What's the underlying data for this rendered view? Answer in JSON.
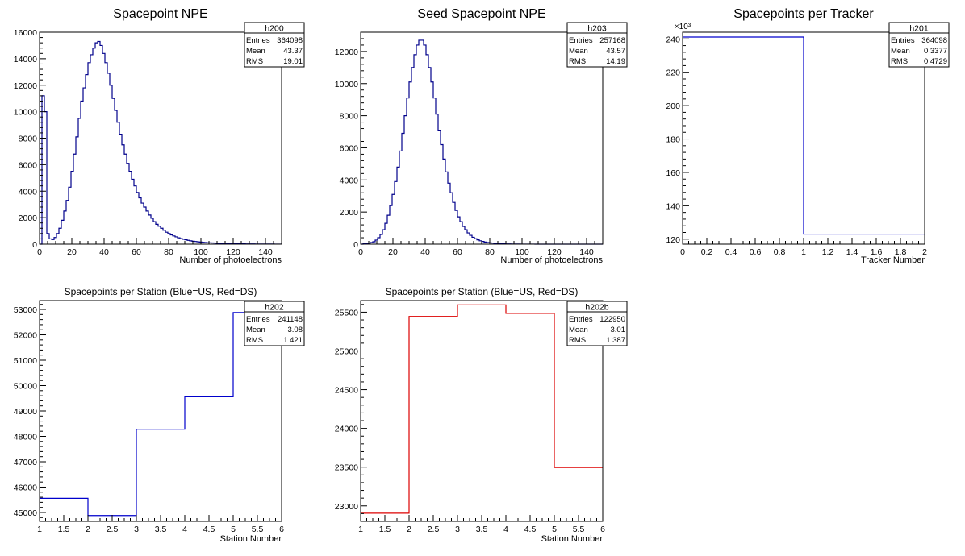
{
  "chart_data": [
    {
      "type": "histogram",
      "title": "Spacepoint NPE",
      "xlabel": "Number of photoelectrons",
      "ylabel": "",
      "xlim": [
        0,
        150
      ],
      "ylim": [
        0,
        16000
      ],
      "x_ticks": [
        0,
        20,
        40,
        60,
        80,
        100,
        120,
        140
      ],
      "y_ticks": [
        0,
        2000,
        4000,
        6000,
        8000,
        10000,
        12000,
        14000,
        16000
      ],
      "y_exponent": "",
      "line_color": "#00008b",
      "stats": {
        "name": "h200",
        "Entries": "364098",
        "Mean": "43.37",
        "RMS": "19.01"
      },
      "bin_edges_start": 0,
      "bin_width": 1.5,
      "values": [
        0,
        11200,
        10000,
        800,
        400,
        350,
        500,
        800,
        1200,
        1800,
        2500,
        3300,
        4300,
        5500,
        6800,
        8100,
        9500,
        10800,
        11800,
        12800,
        13700,
        14300,
        14800,
        15200,
        15300,
        15000,
        14400,
        13700,
        12900,
        12000,
        11000,
        10100,
        9200,
        8300,
        7500,
        6800,
        6100,
        5500,
        4900,
        4400,
        3900,
        3500,
        3100,
        2800,
        2500,
        2200,
        1950,
        1700,
        1500,
        1350,
        1200,
        1050,
        900,
        800,
        700,
        620,
        550,
        480,
        420,
        370,
        330,
        290,
        250,
        220,
        200,
        180,
        160,
        140,
        120,
        110,
        100,
        90,
        80,
        70,
        65,
        60,
        55,
        50,
        45,
        40,
        35,
        30,
        30,
        25,
        25,
        20,
        20,
        15,
        15,
        12,
        12,
        10,
        10,
        8,
        8,
        6,
        6,
        5,
        5,
        5
      ]
    },
    {
      "type": "histogram",
      "title": "Seed Spacepoint NPE",
      "xlabel": "Number of photoelectrons",
      "ylabel": "",
      "xlim": [
        0,
        150
      ],
      "ylim": [
        0,
        13200
      ],
      "x_ticks": [
        0,
        20,
        40,
        60,
        80,
        100,
        120,
        140
      ],
      "y_ticks": [
        0,
        2000,
        4000,
        6000,
        8000,
        10000,
        12000
      ],
      "y_exponent": "",
      "line_color": "#00008b",
      "stats": {
        "name": "h203",
        "Entries": "257168",
        "Mean": "43.57",
        "RMS": "14.19"
      },
      "bin_edges_start": 0,
      "bin_width": 1.5,
      "values": [
        0,
        20,
        40,
        60,
        100,
        150,
        250,
        400,
        600,
        900,
        1300,
        1800,
        2400,
        3100,
        3900,
        4800,
        5800,
        6900,
        8000,
        9100,
        10100,
        11000,
        11800,
        12400,
        12700,
        12700,
        12400,
        11800,
        11000,
        10100,
        9100,
        8100,
        7100,
        6200,
        5300,
        4500,
        3800,
        3200,
        2600,
        2100,
        1700,
        1400,
        1100,
        900,
        700,
        550,
        430,
        340,
        270,
        210,
        170,
        130,
        100,
        80,
        65,
        50,
        40,
        32,
        25,
        20,
        16,
        13,
        10,
        8,
        6,
        5,
        4,
        3,
        3,
        2,
        2,
        2,
        1,
        1,
        1,
        1,
        1,
        0,
        0,
        0,
        0,
        0,
        0,
        0,
        0,
        0,
        0,
        0,
        0,
        0,
        0,
        0,
        0,
        0,
        0,
        0,
        0,
        0,
        0,
        0
      ]
    },
    {
      "type": "histogram",
      "title": "Spacepoints per Tracker",
      "xlabel": "Tracker Number",
      "ylabel": "",
      "xlim": [
        0,
        2
      ],
      "ylim": [
        117,
        244
      ],
      "x_ticks": [
        0,
        0.2,
        0.4,
        0.6,
        0.8,
        1,
        1.2,
        1.4,
        1.6,
        1.8,
        2
      ],
      "y_ticks": [
        120,
        140,
        160,
        180,
        200,
        220,
        240
      ],
      "y_exponent": "×10³",
      "line_color": "#0000cc",
      "stats": {
        "name": "h201",
        "Entries": "364098",
        "Mean": "0.3377",
        "RMS": "0.4729"
      },
      "bin_edges_start": 0,
      "bin_width": 1,
      "values": [
        241.1,
        123.0
      ]
    },
    {
      "type": "histogram",
      "title": "Spacepoints per Station (Blue=US, Red=DS)",
      "xlabel": "Station Number",
      "ylabel": "",
      "xlim": [
        1,
        6
      ],
      "ylim": [
        44650,
        53350
      ],
      "x_ticks": [
        1,
        1.5,
        2,
        2.5,
        3,
        3.5,
        4,
        4.5,
        5,
        5.5,
        6
      ],
      "y_ticks": [
        45000,
        46000,
        47000,
        48000,
        49000,
        50000,
        51000,
        52000,
        53000
      ],
      "y_exponent": "",
      "line_color": "#0000cc",
      "stats": {
        "name": "h202",
        "Entries": "241148",
        "Mean": "3.08",
        "RMS": "1.421"
      },
      "bin_edges_start": 1,
      "bin_width": 1,
      "values": [
        45560,
        44880,
        48280,
        49560,
        52880
      ]
    },
    {
      "type": "histogram",
      "title": "Spacepoints per Station (Blue=US, Red=DS)",
      "xlabel": "Station Number",
      "ylabel": "",
      "xlim": [
        1,
        6
      ],
      "ylim": [
        22800,
        25650
      ],
      "x_ticks": [
        1,
        1.5,
        2,
        2.5,
        3,
        3.5,
        4,
        4.5,
        5,
        5.5,
        6
      ],
      "y_ticks": [
        23000,
        23500,
        24000,
        24500,
        25000,
        25500
      ],
      "y_exponent": "",
      "line_color": "#dd0000",
      "stats": {
        "name": "h202b",
        "Entries": "122950",
        "Mean": "3.01",
        "RMS": "1.387"
      },
      "bin_edges_start": 1,
      "bin_width": 1,
      "values": [
        22905,
        25445,
        25595,
        25485,
        23495
      ]
    }
  ]
}
